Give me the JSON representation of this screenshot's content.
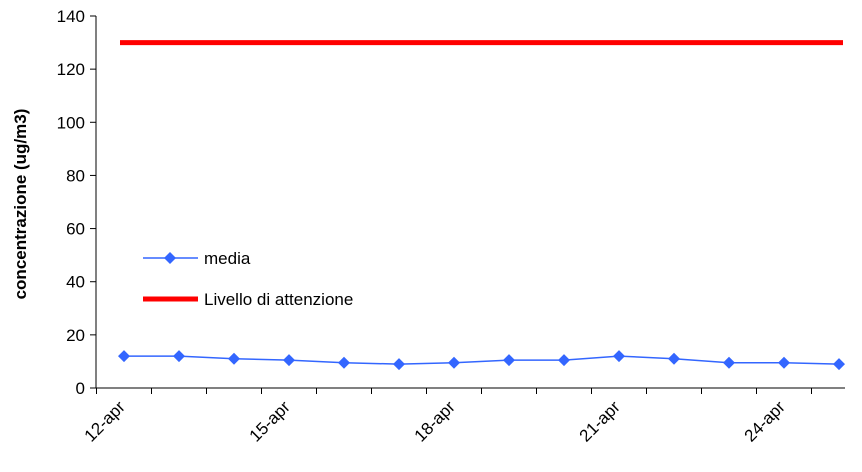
{
  "chart_data": {
    "type": "line",
    "title": "",
    "xlabel": "",
    "ylabel": "concentrazione (ug/m3)",
    "ylim": [
      0,
      140
    ],
    "y_ticks": [
      0,
      20,
      40,
      60,
      80,
      100,
      120,
      140
    ],
    "x_ticks": [
      "12-apr",
      "15-apr",
      "18-apr",
      "21-apr",
      "24-apr"
    ],
    "x": [
      "12-apr",
      "13-apr",
      "14-apr",
      "15-apr",
      "16-apr",
      "17-apr",
      "18-apr",
      "19-apr",
      "20-apr",
      "21-apr",
      "22-apr",
      "23-apr",
      "24-apr",
      "25-apr"
    ],
    "grid": false,
    "legend_position": "left",
    "series": [
      {
        "name": "media",
        "color": "#3366ff",
        "marker": "diamond",
        "values": [
          12,
          12,
          11,
          10.5,
          9.5,
          9,
          9.5,
          10.5,
          10.5,
          12,
          11,
          9.5,
          9.5,
          9
        ]
      },
      {
        "name": "Livello di attenzione",
        "color": "#ff0000",
        "marker": "none",
        "values": [
          130,
          130,
          130,
          130,
          130,
          130,
          130,
          130,
          130,
          130,
          130,
          130,
          130,
          130
        ]
      }
    ]
  }
}
